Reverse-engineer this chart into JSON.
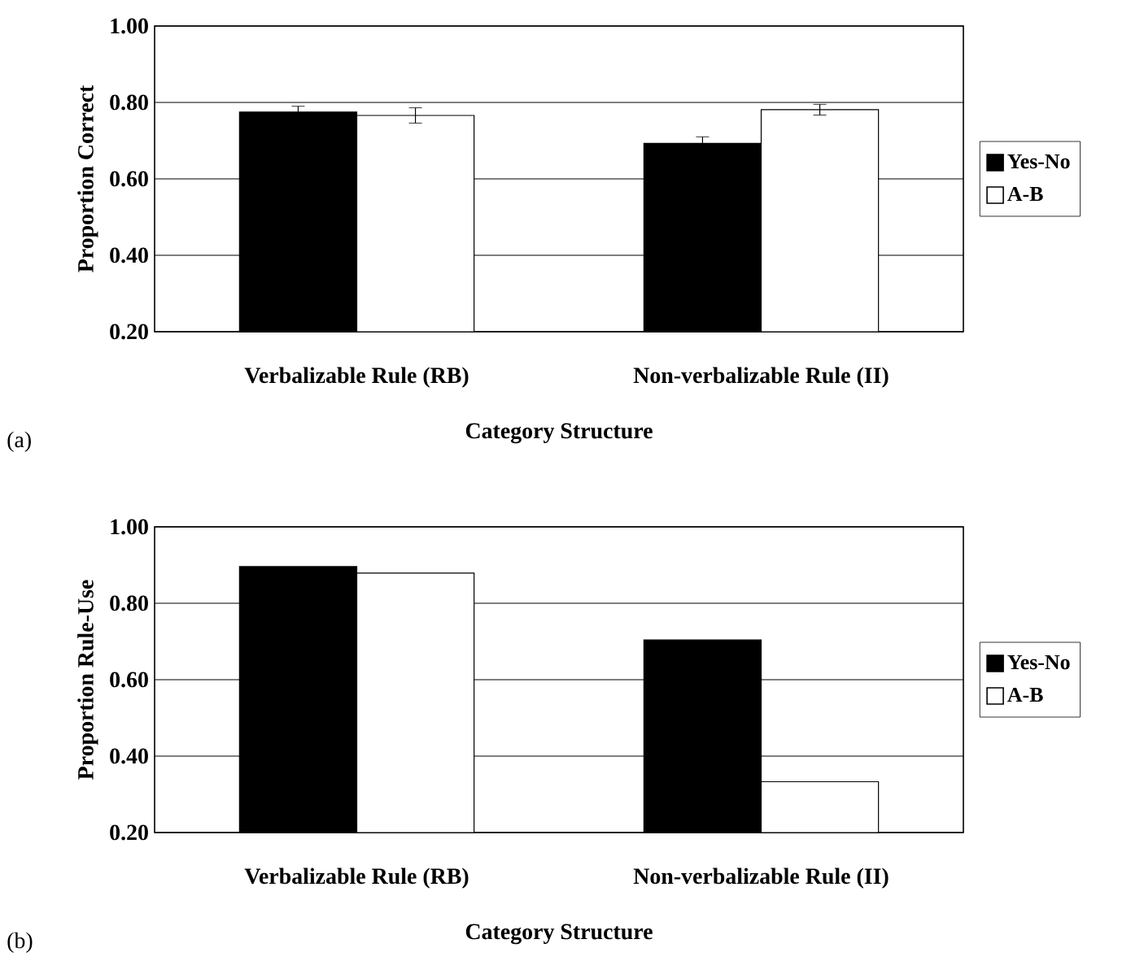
{
  "chart_data": [
    {
      "type": "bar",
      "categories": [
        "Verbalizable Rule (RB)",
        "Non-verbalizable Rule (II)"
      ],
      "xlabel": "Category Structure",
      "ylabel": "Proportion Correct",
      "annotations": [
        "(a)"
      ],
      "series": [
        {
          "name": "Yes-No",
          "color": "#000000",
          "values": [
            0.775,
            0.693
          ],
          "errors": [
            0.015,
            0.017
          ]
        },
        {
          "name": "A-B",
          "color": "#ffffff",
          "values": [
            0.766,
            0.781
          ],
          "errors": [
            0.02,
            0.014
          ]
        }
      ],
      "ylim": [
        0.2,
        1.0
      ],
      "yticks": [
        {
          "value": 0.2,
          "label": "0.20"
        },
        {
          "value": 0.4,
          "label": "0.40"
        },
        {
          "value": 0.6,
          "label": "0.60"
        },
        {
          "value": 0.8,
          "label": "0.80"
        },
        {
          "value": 1.0,
          "label": "1.00"
        }
      ],
      "grid": "y",
      "legend": "right"
    },
    {
      "type": "bar",
      "categories": [
        "Verbalizable Rule (RB)",
        "Non-verbalizable Rule (II)"
      ],
      "xlabel": "Category Structure",
      "ylabel": "Proportion Rule-Use",
      "annotations": [
        "(b)"
      ],
      "series": [
        {
          "name": "Yes-No",
          "color": "#000000",
          "values": [
            0.896,
            0.704
          ]
        },
        {
          "name": "A-B",
          "color": "#ffffff",
          "values": [
            0.879,
            0.333
          ]
        }
      ],
      "ylim": [
        0.2,
        1.0
      ],
      "yticks": [
        {
          "value": 0.2,
          "label": "0.20"
        },
        {
          "value": 0.4,
          "label": "0.40"
        },
        {
          "value": 0.6,
          "label": "0.60"
        },
        {
          "value": 0.8,
          "label": "0.80"
        },
        {
          "value": 1.0,
          "label": "1.00"
        }
      ],
      "grid": "y",
      "legend": "right"
    }
  ]
}
